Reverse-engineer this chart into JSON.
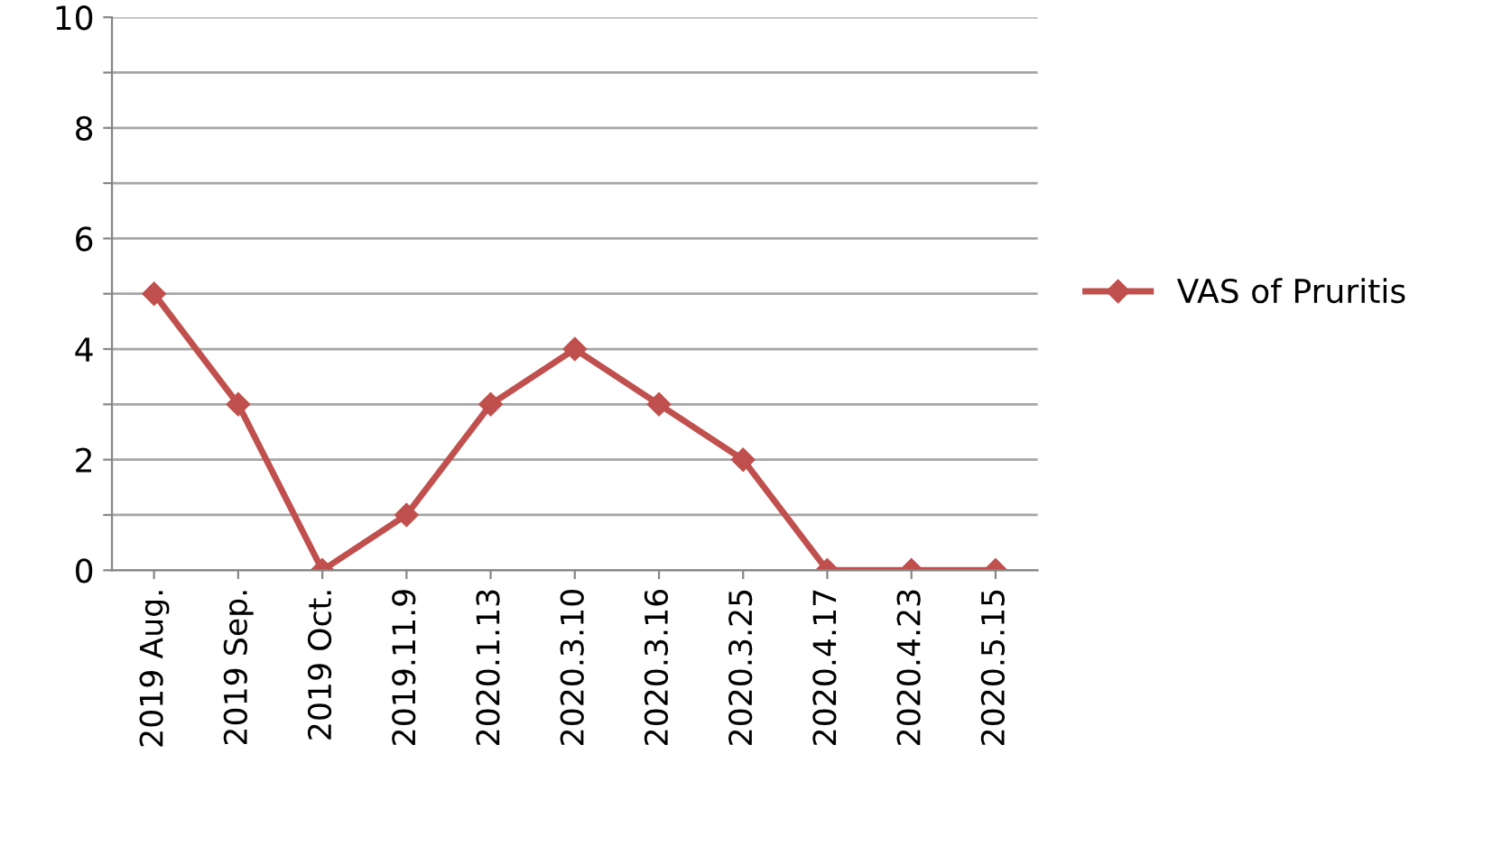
{
  "chart_data": {
    "type": "line",
    "categories": [
      "2019 Aug.",
      "2019 Sep.",
      "2019 Oct.",
      "2019.11.9",
      "2020.1.13",
      "2020.3.10",
      "2020.3.16",
      "2020.3.25",
      "2020.4.17",
      "2020.4.23",
      "2020.5.15"
    ],
    "series": [
      {
        "name": "VAS of Pruritis",
        "color": "#c0504d",
        "values": [
          5,
          3,
          0,
          1,
          3,
          4,
          3,
          2,
          0,
          0,
          0
        ]
      }
    ],
    "ylim": [
      0,
      10
    ],
    "yticks": [
      0,
      {
        "value": 1,
        "label": null
      },
      2,
      {
        "value": 3,
        "label": null
      },
      4,
      {
        "value": 5,
        "label": null
      },
      6,
      {
        "value": 7,
        "label": null
      },
      8,
      {
        "value": 9,
        "label": null
      },
      10
    ],
    "grid": "y",
    "legend": "right",
    "marker": "diamond",
    "line_style": "solid"
  }
}
